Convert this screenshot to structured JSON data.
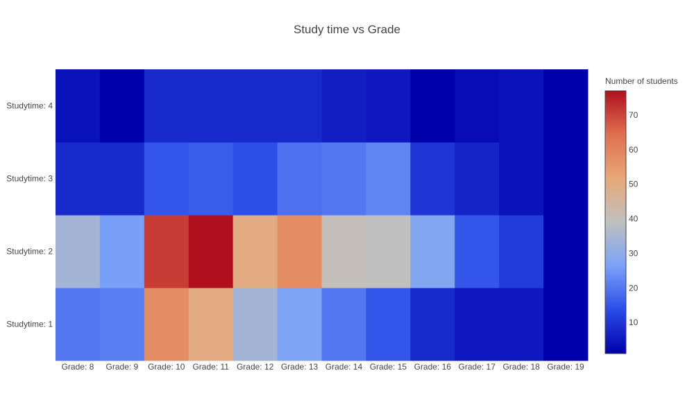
{
  "chart_data": {
    "type": "heatmap",
    "title": "Study time vs Grade",
    "x_categories": [
      "Grade: 8",
      "Grade: 9",
      "Grade: 10",
      "Grade: 11",
      "Grade: 12",
      "Grade: 13",
      "Grade: 14",
      "Grade: 15",
      "Grade: 16",
      "Grade: 17",
      "Grade: 18",
      "Grade: 19"
    ],
    "y_categories": [
      "Studytime: 1",
      "Studytime: 2",
      "Studytime: 3",
      "Studytime: 4"
    ],
    "z": [
      [
        20,
        21,
        58,
        50,
        34,
        27,
        20,
        15,
        8,
        5,
        5,
        1
      ],
      [
        34,
        26,
        71,
        77,
        50,
        58,
        40,
        39,
        28,
        15,
        11,
        1
      ],
      [
        8,
        8,
        15,
        16,
        14,
        19,
        20,
        22,
        10,
        7,
        4,
        1
      ],
      [
        4,
        1,
        8,
        8,
        8,
        8,
        6,
        5,
        1,
        3,
        4,
        1
      ]
    ],
    "colorbar": {
      "title": "Number of students",
      "range": [
        1,
        77
      ],
      "tick_values": [
        10,
        20,
        30,
        40,
        50,
        60,
        70
      ],
      "tick_labels": [
        "10",
        "20",
        "30",
        "40",
        "50",
        "60",
        "70"
      ],
      "colorscale": [
        "#0000aa",
        "#2b4ce8",
        "#7aa2f8",
        "#c0c0c0",
        "#e8a878",
        "#e07050",
        "#b0101e"
      ]
    }
  }
}
